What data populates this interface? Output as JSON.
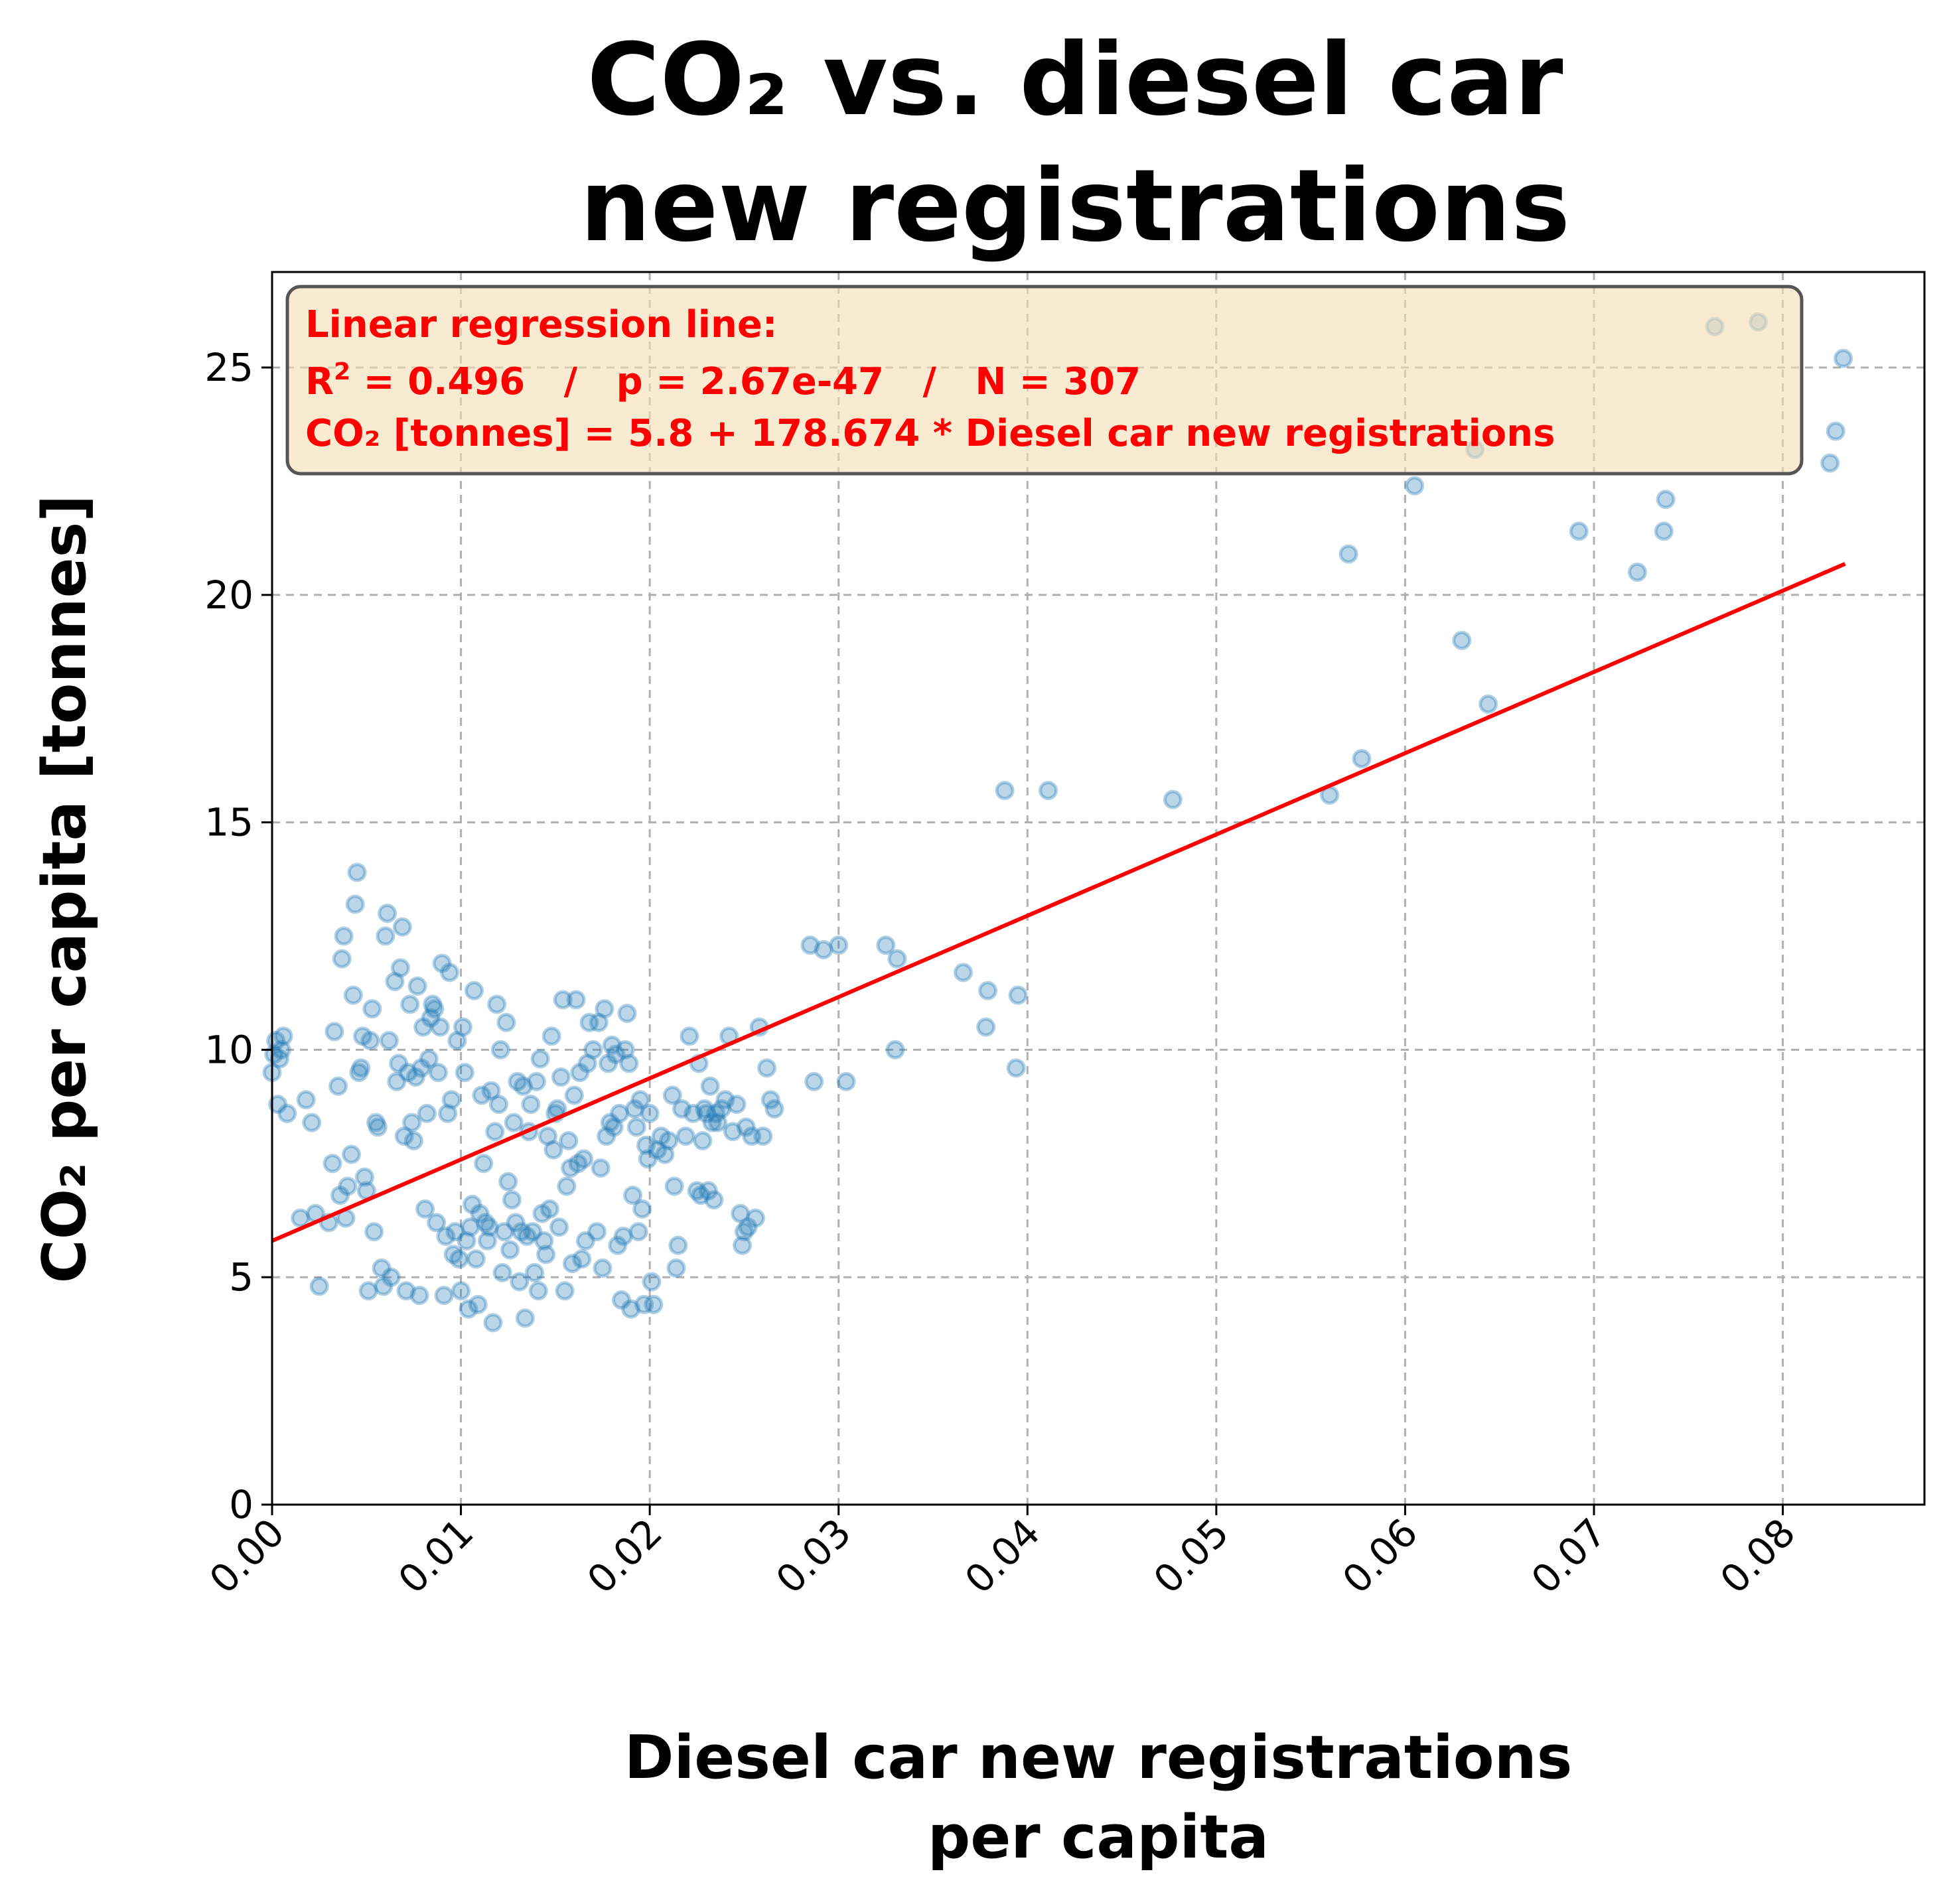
{
  "chart_data": {
    "type": "scatter",
    "title_lines": [
      "CO₂ vs. diesel car",
      "new registrations"
    ],
    "xlabel_lines": [
      "Diesel car new registrations",
      "per capita"
    ],
    "ylabel": "CO₂ per capita [tonnes]",
    "xlim": [
      0,
      0.0875
    ],
    "ylim": [
      0,
      27.1
    ],
    "xticks": [
      0.0,
      0.01,
      0.02,
      0.03,
      0.04,
      0.05,
      0.06,
      0.07,
      0.08
    ],
    "xtick_labels": [
      "0.00",
      "0.01",
      "0.02",
      "0.03",
      "0.04",
      "0.05",
      "0.06",
      "0.07",
      "0.08"
    ],
    "yticks": [
      0,
      5,
      10,
      15,
      20,
      25
    ],
    "ytick_labels": [
      "0",
      "5",
      "10",
      "15",
      "20",
      "25"
    ],
    "grid": true,
    "colors": {
      "points": "#1f77b4",
      "regression_line": "#ff0000",
      "annotation_box": "#f5deb3"
    },
    "regression": {
      "intercept": 5.8,
      "slope": 178.674,
      "x_range": [
        0,
        0.0833
      ]
    },
    "annotation": {
      "line1": "Linear regression line:",
      "line2_r": "R",
      "line2_sup": "2",
      "line2_rest": " = 0.496   /   p = 2.67e-47   /   N = 307",
      "line3": "CO₂ [tonnes] = 5.8 + 178.674 * Diesel car new registrations"
    },
    "points": [
      [
        0.0,
        9.5
      ],
      [
        0.0002,
        10.2
      ],
      [
        0.0004,
        9.8
      ],
      [
        0.0006,
        10.3
      ],
      [
        0.0003,
        8.8
      ],
      [
        0.0008,
        8.6
      ],
      [
        0.0005,
        10.0
      ],
      [
        0.0001,
        9.9
      ],
      [
        0.0015,
        6.3
      ],
      [
        0.0018,
        8.9
      ],
      [
        0.0021,
        8.4
      ],
      [
        0.0023,
        6.4
      ],
      [
        0.0025,
        4.8
      ],
      [
        0.003,
        6.2
      ],
      [
        0.0032,
        7.5
      ],
      [
        0.0033,
        10.4
      ],
      [
        0.0035,
        9.2
      ],
      [
        0.0036,
        6.8
      ],
      [
        0.0037,
        12.0
      ],
      [
        0.0038,
        12.5
      ],
      [
        0.0039,
        6.3
      ],
      [
        0.004,
        7.0
      ],
      [
        0.0042,
        7.7
      ],
      [
        0.0043,
        11.2
      ],
      [
        0.0044,
        13.2
      ],
      [
        0.0045,
        13.9
      ],
      [
        0.0046,
        9.5
      ],
      [
        0.0047,
        9.6
      ],
      [
        0.0048,
        10.3
      ],
      [
        0.0049,
        7.2
      ],
      [
        0.005,
        6.9
      ],
      [
        0.0051,
        4.7
      ],
      [
        0.0052,
        10.2
      ],
      [
        0.0053,
        10.9
      ],
      [
        0.0054,
        6.0
      ],
      [
        0.0055,
        8.4
      ],
      [
        0.0056,
        8.3
      ],
      [
        0.0058,
        5.2
      ],
      [
        0.0059,
        4.8
      ],
      [
        0.006,
        12.5
      ],
      [
        0.0061,
        13.0
      ],
      [
        0.0062,
        10.2
      ],
      [
        0.0063,
        5.0
      ],
      [
        0.0065,
        11.5
      ],
      [
        0.0066,
        9.3
      ],
      [
        0.0067,
        9.7
      ],
      [
        0.0068,
        11.8
      ],
      [
        0.0069,
        12.7
      ],
      [
        0.007,
        8.1
      ],
      [
        0.0071,
        4.7
      ],
      [
        0.0072,
        9.5
      ],
      [
        0.0073,
        11.0
      ],
      [
        0.0074,
        8.4
      ],
      [
        0.0075,
        8.0
      ],
      [
        0.0076,
        9.4
      ],
      [
        0.0077,
        11.4
      ],
      [
        0.0078,
        4.6
      ],
      [
        0.0079,
        9.6
      ],
      [
        0.008,
        10.5
      ],
      [
        0.0081,
        6.5
      ],
      [
        0.0082,
        8.6
      ],
      [
        0.0083,
        9.8
      ],
      [
        0.0084,
        10.7
      ],
      [
        0.0085,
        11.0
      ],
      [
        0.0086,
        10.9
      ],
      [
        0.0087,
        6.2
      ],
      [
        0.0088,
        9.5
      ],
      [
        0.0089,
        10.5
      ],
      [
        0.009,
        11.9
      ],
      [
        0.0091,
        4.6
      ],
      [
        0.0092,
        5.9
      ],
      [
        0.0093,
        8.6
      ],
      [
        0.0094,
        11.7
      ],
      [
        0.0095,
        8.9
      ],
      [
        0.0096,
        5.5
      ],
      [
        0.0097,
        6.0
      ],
      [
        0.0098,
        10.2
      ],
      [
        0.0099,
        5.4
      ],
      [
        0.01,
        4.7
      ],
      [
        0.0101,
        10.5
      ],
      [
        0.0102,
        9.5
      ],
      [
        0.0103,
        5.8
      ],
      [
        0.0104,
        4.3
      ],
      [
        0.0105,
        6.1
      ],
      [
        0.0106,
        6.6
      ],
      [
        0.0107,
        11.3
      ],
      [
        0.0108,
        5.4
      ],
      [
        0.0109,
        4.4
      ],
      [
        0.011,
        6.4
      ],
      [
        0.0111,
        9.0
      ],
      [
        0.0112,
        7.5
      ],
      [
        0.0113,
        6.2
      ],
      [
        0.0114,
        5.8
      ],
      [
        0.0115,
        6.1
      ],
      [
        0.0116,
        9.1
      ],
      [
        0.0117,
        4.0
      ],
      [
        0.0118,
        8.2
      ],
      [
        0.0119,
        11.0
      ],
      [
        0.012,
        8.8
      ],
      [
        0.0121,
        10.0
      ],
      [
        0.0122,
        5.1
      ],
      [
        0.0123,
        6.0
      ],
      [
        0.0124,
        10.6
      ],
      [
        0.0125,
        7.1
      ],
      [
        0.0126,
        5.6
      ],
      [
        0.0127,
        6.7
      ],
      [
        0.0128,
        8.4
      ],
      [
        0.0129,
        6.2
      ],
      [
        0.013,
        9.3
      ],
      [
        0.0131,
        4.9
      ],
      [
        0.0132,
        6.0
      ],
      [
        0.0133,
        9.2
      ],
      [
        0.0134,
        4.1
      ],
      [
        0.0135,
        5.9
      ],
      [
        0.0136,
        8.2
      ],
      [
        0.0137,
        8.8
      ],
      [
        0.0138,
        6.0
      ],
      [
        0.0139,
        5.1
      ],
      [
        0.014,
        9.3
      ],
      [
        0.0141,
        4.7
      ],
      [
        0.0142,
        9.8
      ],
      [
        0.0143,
        6.4
      ],
      [
        0.0144,
        5.8
      ],
      [
        0.0145,
        5.5
      ],
      [
        0.0146,
        8.1
      ],
      [
        0.0147,
        6.5
      ],
      [
        0.0148,
        10.3
      ],
      [
        0.0149,
        7.8
      ],
      [
        0.015,
        8.6
      ],
      [
        0.0151,
        8.7
      ],
      [
        0.0152,
        6.1
      ],
      [
        0.0153,
        9.4
      ],
      [
        0.0154,
        11.1
      ],
      [
        0.0155,
        4.7
      ],
      [
        0.0156,
        7.0
      ],
      [
        0.0157,
        8.0
      ],
      [
        0.0158,
        7.4
      ],
      [
        0.0159,
        5.3
      ],
      [
        0.016,
        9.0
      ],
      [
        0.0161,
        11.1
      ],
      [
        0.0162,
        7.5
      ],
      [
        0.0163,
        9.5
      ],
      [
        0.0164,
        5.4
      ],
      [
        0.0165,
        7.6
      ],
      [
        0.0166,
        5.8
      ],
      [
        0.0167,
        9.7
      ],
      [
        0.0168,
        10.6
      ],
      [
        0.017,
        10.0
      ],
      [
        0.0172,
        6.0
      ],
      [
        0.0173,
        10.6
      ],
      [
        0.0174,
        7.4
      ],
      [
        0.0175,
        5.2
      ],
      [
        0.0176,
        10.9
      ],
      [
        0.0177,
        8.1
      ],
      [
        0.0178,
        9.7
      ],
      [
        0.0179,
        8.4
      ],
      [
        0.018,
        10.1
      ],
      [
        0.0181,
        8.3
      ],
      [
        0.0182,
        9.9
      ],
      [
        0.0183,
        5.7
      ],
      [
        0.0184,
        8.6
      ],
      [
        0.0185,
        4.5
      ],
      [
        0.0186,
        5.9
      ],
      [
        0.0187,
        10.0
      ],
      [
        0.0188,
        10.8
      ],
      [
        0.0189,
        9.7
      ],
      [
        0.019,
        4.3
      ],
      [
        0.0191,
        6.8
      ],
      [
        0.0192,
        8.7
      ],
      [
        0.0193,
        8.3
      ],
      [
        0.0194,
        6.0
      ],
      [
        0.0195,
        8.9
      ],
      [
        0.0196,
        6.5
      ],
      [
        0.0197,
        4.4
      ],
      [
        0.0198,
        7.9
      ],
      [
        0.0199,
        7.6
      ],
      [
        0.02,
        8.6
      ],
      [
        0.0201,
        4.9
      ],
      [
        0.0202,
        4.4
      ],
      [
        0.0204,
        7.8
      ],
      [
        0.0206,
        8.1
      ],
      [
        0.0208,
        7.7
      ],
      [
        0.021,
        8.0
      ],
      [
        0.0212,
        9.0
      ],
      [
        0.0213,
        7.0
      ],
      [
        0.0214,
        5.2
      ],
      [
        0.0215,
        5.7
      ],
      [
        0.0217,
        8.7
      ],
      [
        0.0219,
        8.1
      ],
      [
        0.0221,
        10.3
      ],
      [
        0.0223,
        8.6
      ],
      [
        0.0225,
        6.9
      ],
      [
        0.0226,
        9.7
      ],
      [
        0.0227,
        6.8
      ],
      [
        0.0228,
        8.0
      ],
      [
        0.0229,
        8.7
      ],
      [
        0.023,
        8.6
      ],
      [
        0.0231,
        6.9
      ],
      [
        0.0232,
        9.2
      ],
      [
        0.0233,
        8.4
      ],
      [
        0.0234,
        6.7
      ],
      [
        0.0235,
        8.6
      ],
      [
        0.0236,
        8.4
      ],
      [
        0.0238,
        8.7
      ],
      [
        0.024,
        8.9
      ],
      [
        0.0242,
        10.3
      ],
      [
        0.0244,
        8.2
      ],
      [
        0.0246,
        8.8
      ],
      [
        0.0248,
        6.4
      ],
      [
        0.0249,
        5.7
      ],
      [
        0.025,
        6.0
      ],
      [
        0.0251,
        8.3
      ],
      [
        0.0252,
        6.1
      ],
      [
        0.0254,
        8.1
      ],
      [
        0.0256,
        6.3
      ],
      [
        0.0258,
        10.5
      ],
      [
        0.026,
        8.1
      ],
      [
        0.0262,
        9.6
      ],
      [
        0.0264,
        8.9
      ],
      [
        0.0266,
        8.7
      ],
      [
        0.0285,
        12.3
      ],
      [
        0.0287,
        9.3
      ],
      [
        0.0292,
        12.2
      ],
      [
        0.03,
        12.3
      ],
      [
        0.0304,
        9.3
      ],
      [
        0.0325,
        12.3
      ],
      [
        0.033,
        10.0
      ],
      [
        0.0331,
        12.0
      ],
      [
        0.0366,
        11.7
      ],
      [
        0.0378,
        10.5
      ],
      [
        0.0379,
        11.3
      ],
      [
        0.0388,
        15.7
      ],
      [
        0.0394,
        9.6
      ],
      [
        0.0395,
        11.2
      ],
      [
        0.0411,
        15.7
      ],
      [
        0.0477,
        15.5
      ],
      [
        0.056,
        15.6
      ],
      [
        0.057,
        20.9
      ],
      [
        0.0577,
        16.4
      ],
      [
        0.0605,
        22.4
      ],
      [
        0.063,
        19.0
      ],
      [
        0.0637,
        23.2
      ],
      [
        0.0644,
        17.6
      ],
      [
        0.0692,
        21.4
      ],
      [
        0.0723,
        20.5
      ],
      [
        0.0737,
        21.4
      ],
      [
        0.0738,
        22.1
      ],
      [
        0.0764,
        25.9
      ],
      [
        0.0787,
        26.0
      ],
      [
        0.0825,
        22.9
      ],
      [
        0.0828,
        23.6
      ],
      [
        0.0832,
        25.2
      ]
    ]
  }
}
